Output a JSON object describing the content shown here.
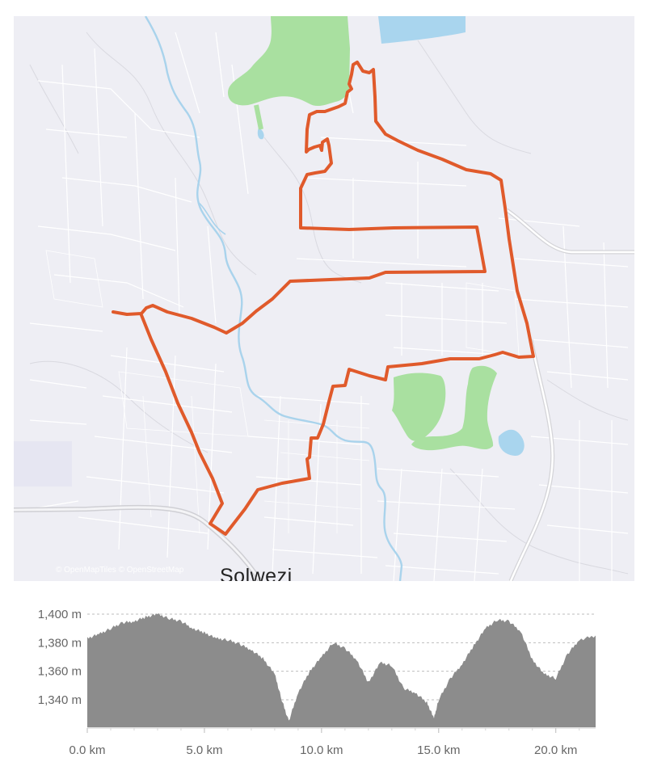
{
  "map": {
    "city_label": "Solwezi",
    "attribution": "© OpenMapTiles © OpenStreetMap",
    "colors": {
      "background": "#eeeef4",
      "road": "#ffffff",
      "major_road": "#cfcfd4",
      "river": "#a9d3ec",
      "water": "#a9d5ee",
      "park": "#a9e0a0",
      "route": "#e05a2b"
    }
  },
  "elevation": {
    "y_ticks": [
      "1,400 m",
      "1,380 m",
      "1,360 m",
      "1,340 m"
    ],
    "x_ticks": [
      "0.0 km",
      "5.0 km",
      "10.0 km",
      "15.0 km",
      "20.0 km"
    ],
    "colors": {
      "fill": "#8c8c8c",
      "grid": "#bdbdbd"
    }
  },
  "chart_data": {
    "type": "area",
    "xlabel": "",
    "ylabel": "",
    "xlim": [
      0,
      21.7
    ],
    "ylim": [
      1320,
      1400
    ],
    "y_unit": "m",
    "x_unit": "km",
    "series": [
      {
        "x": [
          0,
          0.5,
          1,
          1.5,
          2,
          2.5,
          3,
          3.5,
          4,
          4.5,
          5,
          5.5,
          6,
          6.5,
          7,
          7.5,
          8,
          8.3,
          8.6,
          9,
          9.5,
          10,
          10.5,
          11,
          11.5,
          12,
          12.5,
          13,
          13.5,
          14,
          14.5,
          14.8,
          15,
          15.5,
          16,
          16.5,
          17,
          17.5,
          18,
          18.5,
          19,
          19.5,
          20,
          20.5,
          21,
          21.7
        ],
        "y": [
          1383,
          1386,
          1390,
          1394,
          1395,
          1398,
          1400,
          1397,
          1395,
          1390,
          1387,
          1383,
          1382,
          1379,
          1375,
          1369,
          1358,
          1340,
          1325,
          1345,
          1360,
          1370,
          1380,
          1376,
          1368,
          1352,
          1366,
          1364,
          1348,
          1345,
          1338,
          1327,
          1340,
          1355,
          1365,
          1378,
          1390,
          1396,
          1395,
          1388,
          1368,
          1358,
          1355,
          1372,
          1382,
          1385
        ]
      }
    ]
  }
}
